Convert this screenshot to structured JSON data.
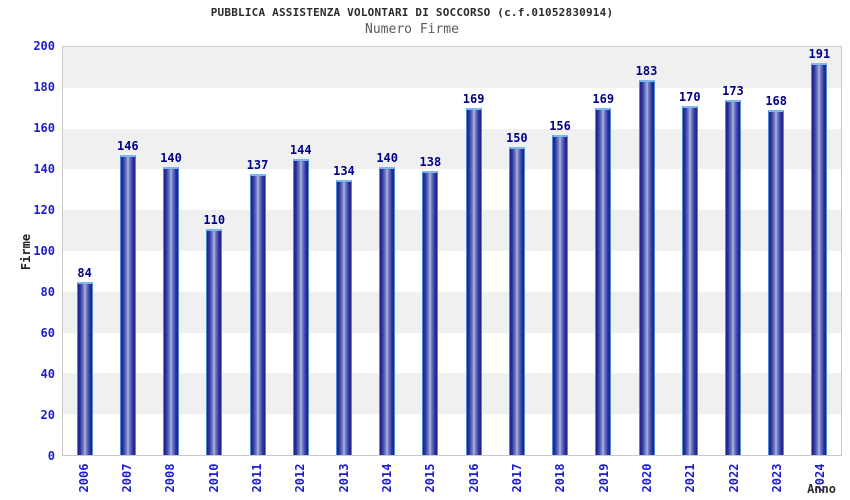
{
  "chart_data": {
    "type": "bar",
    "title": "PUBBLICA ASSISTENZA VOLONTARI DI SOCCORSO (c.f.01052830914)",
    "subtitle": "Numero Firme",
    "xlabel": "Anno",
    "ylabel": "Firme",
    "categories": [
      "2006",
      "2007",
      "2008",
      "2010",
      "2011",
      "2012",
      "2013",
      "2014",
      "2015",
      "2016",
      "2017",
      "2018",
      "2019",
      "2020",
      "2021",
      "2022",
      "2023",
      "2024"
    ],
    "values": [
      84,
      146,
      140,
      110,
      137,
      144,
      134,
      140,
      138,
      169,
      150,
      156,
      169,
      183,
      170,
      173,
      168,
      191
    ],
    "ylim": [
      0,
      200
    ],
    "ytick_step": 20,
    "grid": "horizontal-bands",
    "legend_position": "none"
  },
  "colors": {
    "bar_edge": "#1d1d8c",
    "bar_mid": "#7680c5",
    "bar_highlight": "#aeb5e2",
    "bar_outline": "#4c8fd6",
    "bar_top_cap": "#7bb8ec",
    "value_label": "#00008b",
    "tick_label": "#1c1cd1",
    "band_gray": "#f0f0f0",
    "band_white": "#ffffff",
    "plot_border": "#c9c9c9",
    "title": "#2b2b2b",
    "subtitle": "#5a5a5a",
    "axis_title": "#1f1f1f"
  }
}
